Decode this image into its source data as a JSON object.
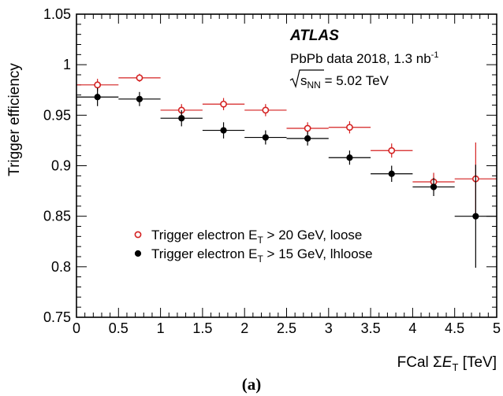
{
  "chart_data": {
    "type": "scatter",
    "x_bin_edges": [
      0,
      0.5,
      1,
      1.5,
      2,
      2.5,
      3,
      3.5,
      4,
      4.5,
      5
    ],
    "x": [
      0.25,
      0.75,
      1.25,
      1.75,
      2.25,
      2.75,
      3.25,
      3.75,
      4.25,
      4.75
    ],
    "series": [
      {
        "name": "Trigger electron E_T > 20 GeV, loose",
        "marker": "open-circle",
        "color": "#d42020",
        "values": [
          0.98,
          0.987,
          0.955,
          0.961,
          0.955,
          0.937,
          0.938,
          0.915,
          0.884,
          0.887
        ],
        "errors": [
          0.006,
          0.004,
          0.006,
          0.006,
          0.006,
          0.006,
          0.006,
          0.007,
          0.009,
          0.036
        ]
      },
      {
        "name": "Trigger electron E_T > 15 GeV, lhloose",
        "marker": "filled-circle",
        "color": "#000000",
        "values": [
          0.968,
          0.966,
          0.947,
          0.935,
          0.928,
          0.927,
          0.908,
          0.892,
          0.879,
          0.85
        ],
        "errors": [
          0.009,
          0.007,
          0.008,
          0.008,
          0.007,
          0.007,
          0.007,
          0.008,
          0.009,
          0.051
        ]
      }
    ],
    "xlabel": {
      "prefix": "FCal Σ",
      "var": "E",
      "sub": "T",
      "suffix": " [TeV]"
    },
    "ylabel": "Trigger efficiency",
    "xlim": [
      0,
      5
    ],
    "ylim": [
      0.75,
      1.05
    ],
    "xticks": [
      0,
      0.5,
      1,
      1.5,
      2,
      2.5,
      3,
      3.5,
      4,
      4.5,
      5
    ],
    "xtick_labels": [
      "0",
      "0.5",
      "1",
      "1.5",
      "2",
      "2.5",
      "3",
      "3.5",
      "4",
      "4.5",
      "5"
    ],
    "yticks": [
      0.75,
      0.8,
      0.85,
      0.9,
      0.95,
      1.0,
      1.05
    ],
    "ytick_labels": [
      "0.75",
      "0.8",
      "0.85",
      "0.9",
      "0.95",
      "1",
      "1.05"
    ],
    "grid": false,
    "legend_position": "lower-left",
    "legend": [
      {
        "pre": "Trigger electron E",
        "sub": "T",
        "post": " > 20 GeV, loose"
      },
      {
        "pre": "Trigger electron E",
        "sub": "T",
        "post": " > 15 GeV, lhloose"
      }
    ],
    "annotations": {
      "atlas": "ATLAS",
      "data_pre": "PbPb data 2018, 1.3 nb",
      "data_sup": "-1",
      "sqrt_s": "s",
      "sqrt_sub": "NN",
      "energy": " = 5.02 TeV"
    },
    "panel_label": "(a)"
  }
}
